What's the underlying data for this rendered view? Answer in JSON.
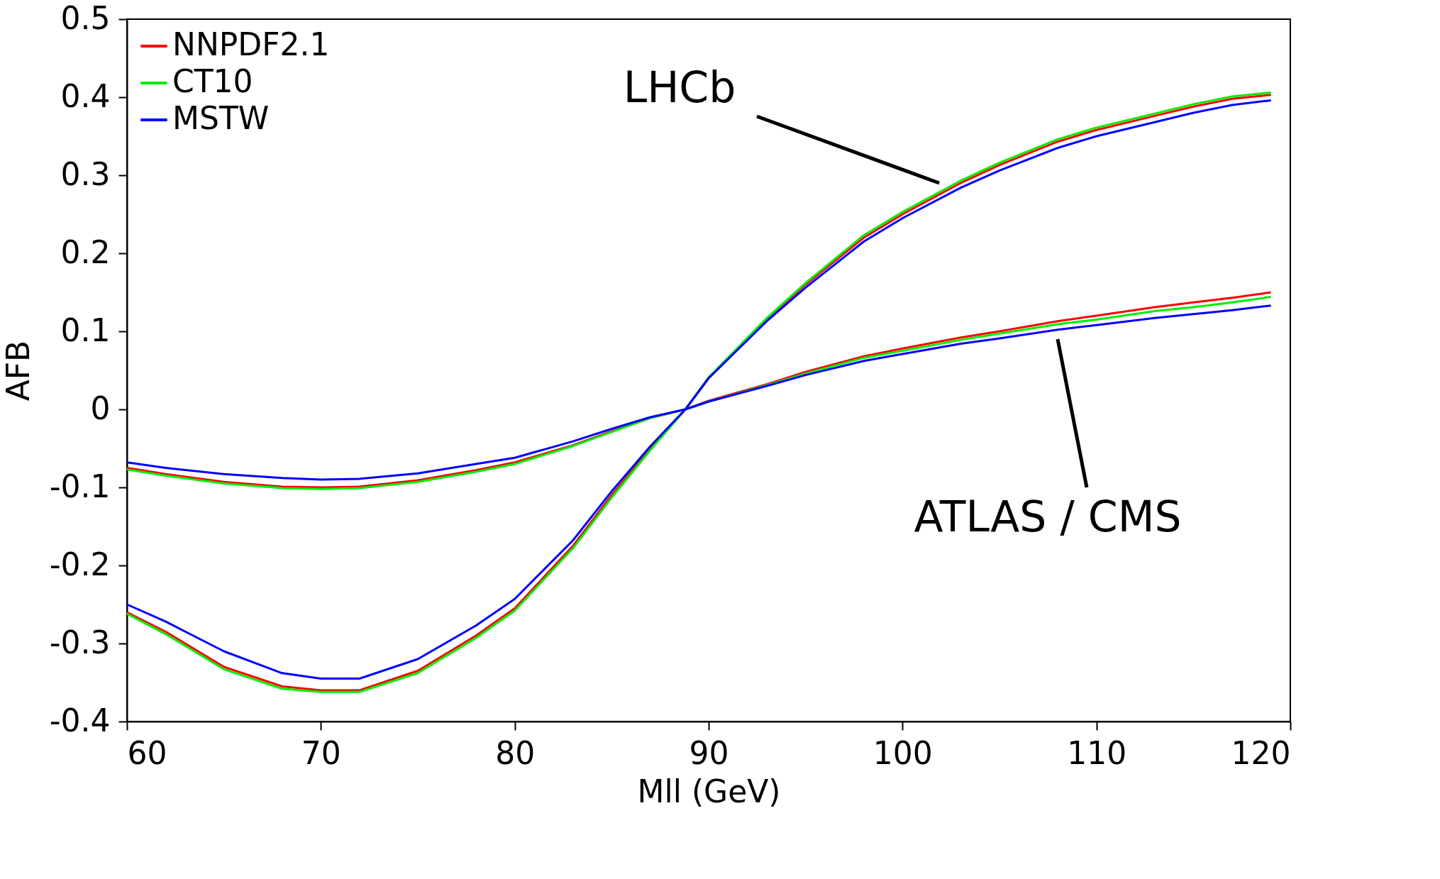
{
  "chart_data": {
    "type": "line",
    "xlabel": "Mll (GeV)",
    "ylabel": "AFB",
    "xlim": [
      60,
      120
    ],
    "xticks": [
      60,
      70,
      80,
      90,
      100,
      110,
      120
    ],
    "ylim": [
      -0.4,
      0.5
    ],
    "yticks": [
      -0.4,
      -0.3,
      -0.2,
      -0.1,
      0,
      0.1,
      0.2,
      0.3,
      0.4,
      0.5
    ],
    "x": [
      60,
      62,
      65,
      68,
      70,
      72,
      75,
      78,
      80,
      83,
      85,
      87,
      88.8,
      90,
      93,
      95,
      98,
      100,
      103,
      105,
      108,
      110,
      113,
      115,
      117,
      119
    ],
    "series": [
      {
        "name": "NNPDF2.1",
        "color": "#ff0000",
        "values": [
          -0.26,
          -0.285,
          -0.33,
          -0.355,
          -0.36,
          -0.36,
          -0.335,
          -0.29,
          -0.255,
          -0.175,
          -0.11,
          -0.05,
          0,
          0.04,
          0.115,
          0.16,
          0.22,
          0.25,
          0.29,
          0.313,
          0.343,
          0.358,
          0.376,
          0.388,
          0.398,
          0.403
        ]
      },
      {
        "name": "CT10",
        "color": "#00ee00",
        "values": [
          -0.262,
          -0.288,
          -0.333,
          -0.358,
          -0.362,
          -0.362,
          -0.338,
          -0.293,
          -0.258,
          -0.178,
          -0.113,
          -0.052,
          0,
          0.041,
          0.117,
          0.162,
          0.223,
          0.253,
          0.293,
          0.316,
          0.346,
          0.361,
          0.379,
          0.391,
          0.401,
          0.406
        ]
      },
      {
        "name": "MSTW",
        "color": "#0000ff",
        "values": [
          -0.25,
          -0.272,
          -0.31,
          -0.338,
          -0.345,
          -0.345,
          -0.32,
          -0.277,
          -0.243,
          -0.168,
          -0.105,
          -0.047,
          0,
          0.04,
          0.113,
          0.156,
          0.215,
          0.245,
          0.284,
          0.306,
          0.335,
          0.35,
          0.368,
          0.38,
          0.39,
          0.396
        ]
      },
      {
        "color": "#ff0000",
        "values": [
          -0.075,
          -0.083,
          -0.093,
          -0.099,
          -0.1,
          -0.099,
          -0.091,
          -0.078,
          -0.068,
          -0.046,
          -0.028,
          -0.011,
          0,
          0.011,
          0.032,
          0.048,
          0.068,
          0.078,
          0.092,
          0.1,
          0.113,
          0.12,
          0.131,
          0.137,
          0.143,
          0.15
        ]
      },
      {
        "color": "#00ee00",
        "values": [
          -0.077,
          -0.085,
          -0.095,
          -0.101,
          -0.102,
          -0.101,
          -0.093,
          -0.08,
          -0.07,
          -0.047,
          -0.029,
          -0.011,
          0,
          0.01,
          0.031,
          0.046,
          0.066,
          0.075,
          0.089,
          0.097,
          0.109,
          0.115,
          0.126,
          0.131,
          0.137,
          0.144
        ]
      },
      {
        "color": "#0000ff",
        "values": [
          -0.068,
          -0.075,
          -0.083,
          -0.088,
          -0.09,
          -0.089,
          -0.082,
          -0.07,
          -0.062,
          -0.041,
          -0.025,
          -0.01,
          0,
          0.01,
          0.03,
          0.044,
          0.062,
          0.071,
          0.084,
          0.091,
          0.102,
          0.108,
          0.117,
          0.122,
          0.127,
          0.133
        ]
      }
    ],
    "annotations": [
      "LHCb",
      "ATLAS / CMS"
    ],
    "legend": "top left",
    "grid": false,
    "marker": "none",
    "line_style": "solid"
  }
}
